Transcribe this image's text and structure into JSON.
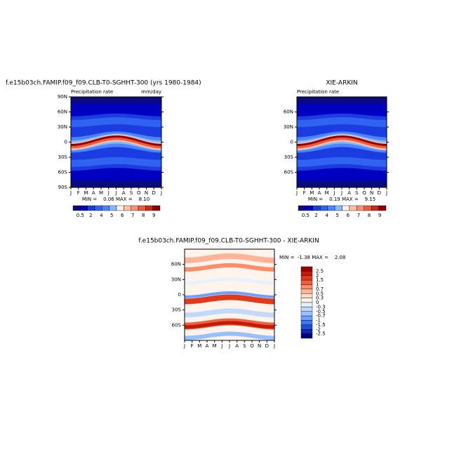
{
  "panels": [
    {
      "title": "f.e15b03ch.FAMIP.f09_f09.CLB-T0-SGHHT-300 (yrs 1980-1984)",
      "variable": "Precipitation rate",
      "units": "mm/day",
      "min_max": "MIN =    0.06 MAX =    8.10",
      "yticks": [
        "90N",
        "60N",
        "30N",
        "0",
        "30S",
        "60S",
        "90S"
      ],
      "xticks": [
        "J",
        "F",
        "M",
        "A",
        "M",
        "J",
        "J",
        "A",
        "S",
        "O",
        "N",
        "D",
        "J"
      ],
      "colorbar": [
        "0.5",
        "2",
        "4",
        "5",
        "6",
        "7",
        "8",
        "9"
      ]
    },
    {
      "title": "XIE-ARKIN",
      "variable": "Precipitation rate",
      "min_max": "MIN =    0.19 MAX =    9.15",
      "yticks": [
        "60N",
        "30N",
        "0",
        "30S",
        "60S"
      ],
      "xticks": [
        "J",
        "F",
        "M",
        "A",
        "M",
        "J",
        "J",
        "A",
        "S",
        "O",
        "N",
        "D",
        "J"
      ],
      "colorbar": [
        "0.5",
        "2",
        "4",
        "5",
        "6",
        "7",
        "8",
        "9"
      ]
    },
    {
      "title": "f.e15b03ch.FAMIP.f09_f09.CLB-T0-SGHHT-300 - XIE-ARKIN",
      "min_max": "MIN =  -1.38 MAX =    2.08",
      "yticks": [
        "60N",
        "30N",
        "0",
        "30S",
        "60S"
      ],
      "xticks": [
        "J",
        "F",
        "M",
        "A",
        "M",
        "J",
        "J",
        "A",
        "S",
        "O",
        "N",
        "D",
        "J"
      ],
      "colorbar": [
        "2.5",
        "2",
        "1.5",
        "1",
        "0.7",
        "0.5",
        "0.3",
        "0",
        "-0.3",
        "-0.5",
        "-0.7",
        "-1",
        "-1.5",
        "-2",
        "-2.5"
      ]
    }
  ]
}
